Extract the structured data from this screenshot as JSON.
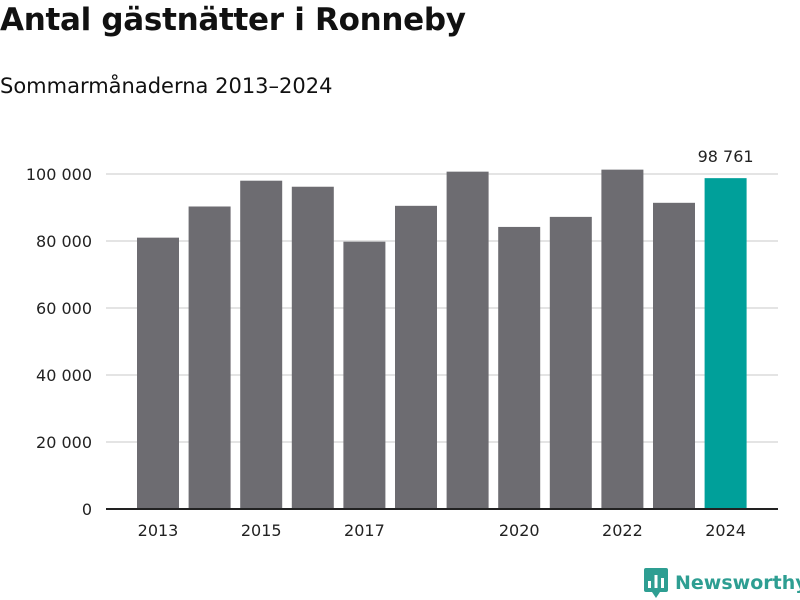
{
  "header": {
    "title": "Antal gästnätter i Ronneby",
    "subtitle": "Sommarmånaderna 2013–2024"
  },
  "chart_data": {
    "type": "bar",
    "title": "Antal gästnätter i Ronneby",
    "subtitle": "Sommarmånaderna 2013–2024",
    "categories": [
      "2013",
      "2014",
      "2015",
      "2016",
      "2017",
      "2018",
      "2019",
      "2020",
      "2021",
      "2022",
      "2023",
      "2024"
    ],
    "values": [
      81000,
      90300,
      98000,
      96200,
      79800,
      90500,
      100700,
      84200,
      87200,
      101300,
      91400,
      98761
    ],
    "x_tick_labels": [
      "2013",
      "2015",
      "2017",
      "2020",
      "2022",
      "2024"
    ],
    "y_tick_labels": [
      "0",
      "20 000",
      "40 000",
      "60 000",
      "80 000",
      "100 000"
    ],
    "y_ticks": [
      0,
      20000,
      40000,
      60000,
      80000,
      100000
    ],
    "ylim": [
      0,
      100000
    ],
    "grid": true,
    "highlight_category": "2024",
    "data_labels": [
      {
        "category": "2024",
        "text": "98 761"
      }
    ],
    "colors": {
      "bar": "#6d6c71",
      "highlight": "#00a09a",
      "grid": "#dcdcdc",
      "axis": "#222222"
    }
  },
  "brand": {
    "name": "Newsworthy",
    "icon": "newsworthy-logo-icon",
    "color": "#2e9e92"
  }
}
